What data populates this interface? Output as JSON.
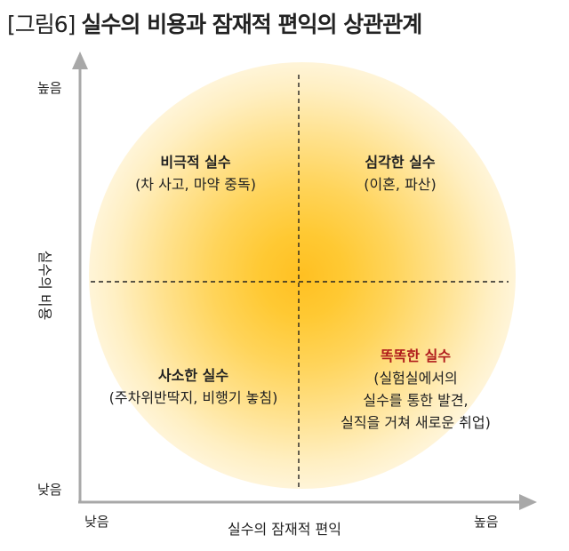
{
  "title": {
    "tag": "[그림6]",
    "text": "실수의 비용과 잠재적 편익의 상관관계"
  },
  "axes": {
    "y_title": "실수의 비용",
    "y_high": "높음",
    "y_low": "낮음",
    "x_title": "실수의 잠재적 편익",
    "x_low": "낮음",
    "x_high": "높음"
  },
  "quadrants": {
    "top_left": {
      "heading": "비극적 실수",
      "lines": [
        "(차 사고, 마약 중독)"
      ]
    },
    "top_right": {
      "heading": "심각한 실수",
      "lines": [
        "(이혼, 파산)"
      ]
    },
    "bottom_left": {
      "heading": "사소한 실수",
      "lines": [
        "(주차위반딱지, 비행기 놓침)"
      ]
    },
    "bottom_right": {
      "heading": "똑똑한 실수",
      "lines": [
        "(실험실에서의",
        "실수를 통한 발견,",
        "실직을 거쳐 새로운 취업)"
      ]
    }
  },
  "colors": {
    "highlight": "#b01c1c",
    "glow": "#ffc022",
    "axis": "#9a9a9a"
  }
}
